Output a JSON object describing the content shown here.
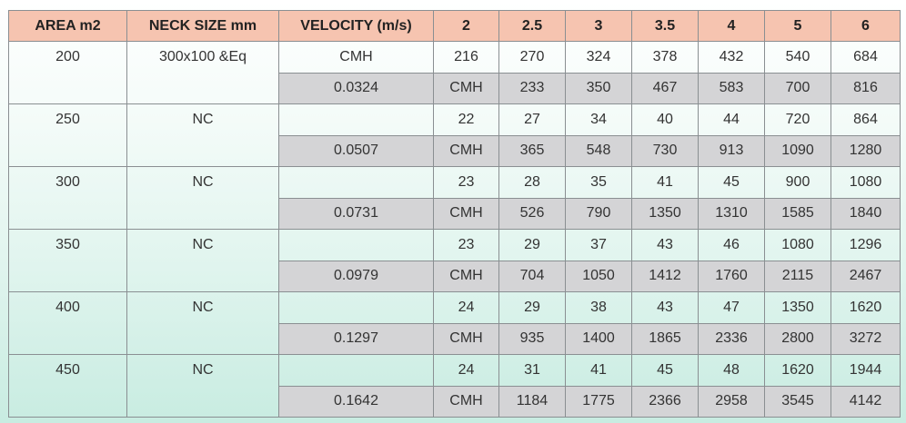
{
  "headers": [
    "AREA m2",
    "NECK SIZE mm",
    "VELOCITY (m/s)",
    "2",
    "2.5",
    "3",
    "3.5",
    "4",
    "5",
    "6"
  ],
  "groups": [
    {
      "area": "200",
      "neck": "300x100 &Eq",
      "row1": [
        "CMH",
        "216",
        "270",
        "324",
        "378",
        "432",
        "540",
        "684"
      ],
      "row2": [
        "0.0324",
        "CMH",
        "233",
        "350",
        "467",
        "583",
        "700",
        "816"
      ]
    },
    {
      "area": "250",
      "neck": "NC",
      "row1": [
        "",
        "22",
        "27",
        "34",
        "40",
        "44",
        "720",
        "864"
      ],
      "row2": [
        "0.0507",
        "CMH",
        "365",
        "548",
        "730",
        "913",
        "1090",
        "1280"
      ]
    },
    {
      "area": "300",
      "neck": "NC",
      "row1": [
        "",
        "23",
        "28",
        "35",
        "41",
        "45",
        "900",
        "1080"
      ],
      "row2": [
        "0.0731",
        "CMH",
        "526",
        "790",
        "1350",
        "1310",
        "1585",
        "1840"
      ]
    },
    {
      "area": "350",
      "neck": "NC",
      "row1": [
        "",
        "23",
        "29",
        "37",
        "43",
        "46",
        "1080",
        "1296"
      ],
      "row2": [
        "0.0979",
        "CMH",
        "704",
        "1050",
        "1412",
        "1760",
        "2115",
        "2467"
      ]
    },
    {
      "area": "400",
      "neck": "NC",
      "row1": [
        "",
        "24",
        "29",
        "38",
        "43",
        "47",
        "1350",
        "1620"
      ],
      "row2": [
        "0.1297",
        "CMH",
        "935",
        "1400",
        "1865",
        "2336",
        "2800",
        "3272"
      ]
    },
    {
      "area": "450",
      "neck": "NC",
      "row1": [
        "",
        "24",
        "31",
        "41",
        "45",
        "48",
        "1620",
        "1944"
      ],
      "row2": [
        "0.1642",
        "CMH",
        "1184",
        "1775",
        "2366",
        "2958",
        "3545",
        "4142"
      ]
    }
  ]
}
